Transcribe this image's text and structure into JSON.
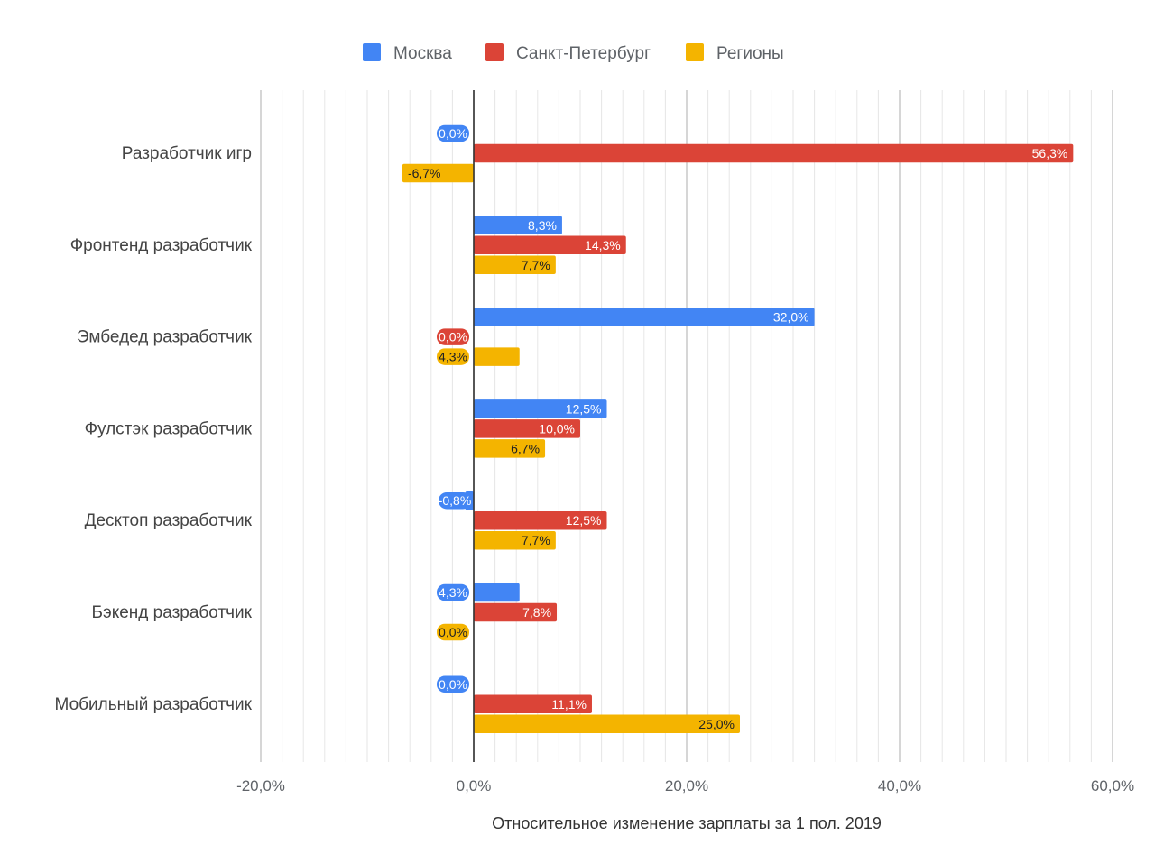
{
  "chart_data": {
    "type": "bar",
    "orientation": "horizontal",
    "categories": [
      "Разработчик игр",
      "Фронтенд разработчик",
      "Эмбедед разработчик",
      "Фулстэк разработчик",
      "Десктоп разработчик",
      "Бэкенд разработчик",
      "Мобильный разработчик"
    ],
    "series": [
      {
        "name": "Москва",
        "color": "#4285f4",
        "label_color": "#ffffff",
        "values": [
          0.0,
          8.3,
          32.0,
          12.5,
          -0.8,
          4.3,
          0.0
        ],
        "labels": [
          "0,0%",
          "8,3%",
          "32,0%",
          "12,5%",
          "-0,8%",
          "4,3%",
          "0,0%"
        ]
      },
      {
        "name": "Санкт-Петербург",
        "color": "#db4437",
        "label_color": "#ffffff",
        "values": [
          56.3,
          14.3,
          0.0,
          10.0,
          12.5,
          7.8,
          11.1
        ],
        "labels": [
          "56,3%",
          "14,3%",
          "0,0%",
          "10,0%",
          "12,5%",
          "7,8%",
          "11,1%"
        ]
      },
      {
        "name": "Регионы",
        "color": "#f4b400",
        "label_color": "#202124",
        "values": [
          -6.7,
          7.7,
          4.3,
          6.7,
          7.7,
          0.0,
          25.0
        ],
        "labels": [
          "-6,7%",
          "7,7%",
          "4,3%",
          "6,7%",
          "7,7%",
          "0,0%",
          "25,0%"
        ]
      }
    ],
    "xlim": [
      -20,
      60
    ],
    "x_ticks": [
      -20,
      0,
      20,
      40,
      60
    ],
    "x_tick_labels": [
      "-20,0%",
      "0,0%",
      "20,0%",
      "40,0%",
      "60,0%"
    ],
    "minor_grid_step": 2,
    "xlabel": "Относительное изменение зарплаты за 1 пол. 2019",
    "ylabel": "",
    "title": "",
    "legend_position": "top-center",
    "grid": true
  }
}
